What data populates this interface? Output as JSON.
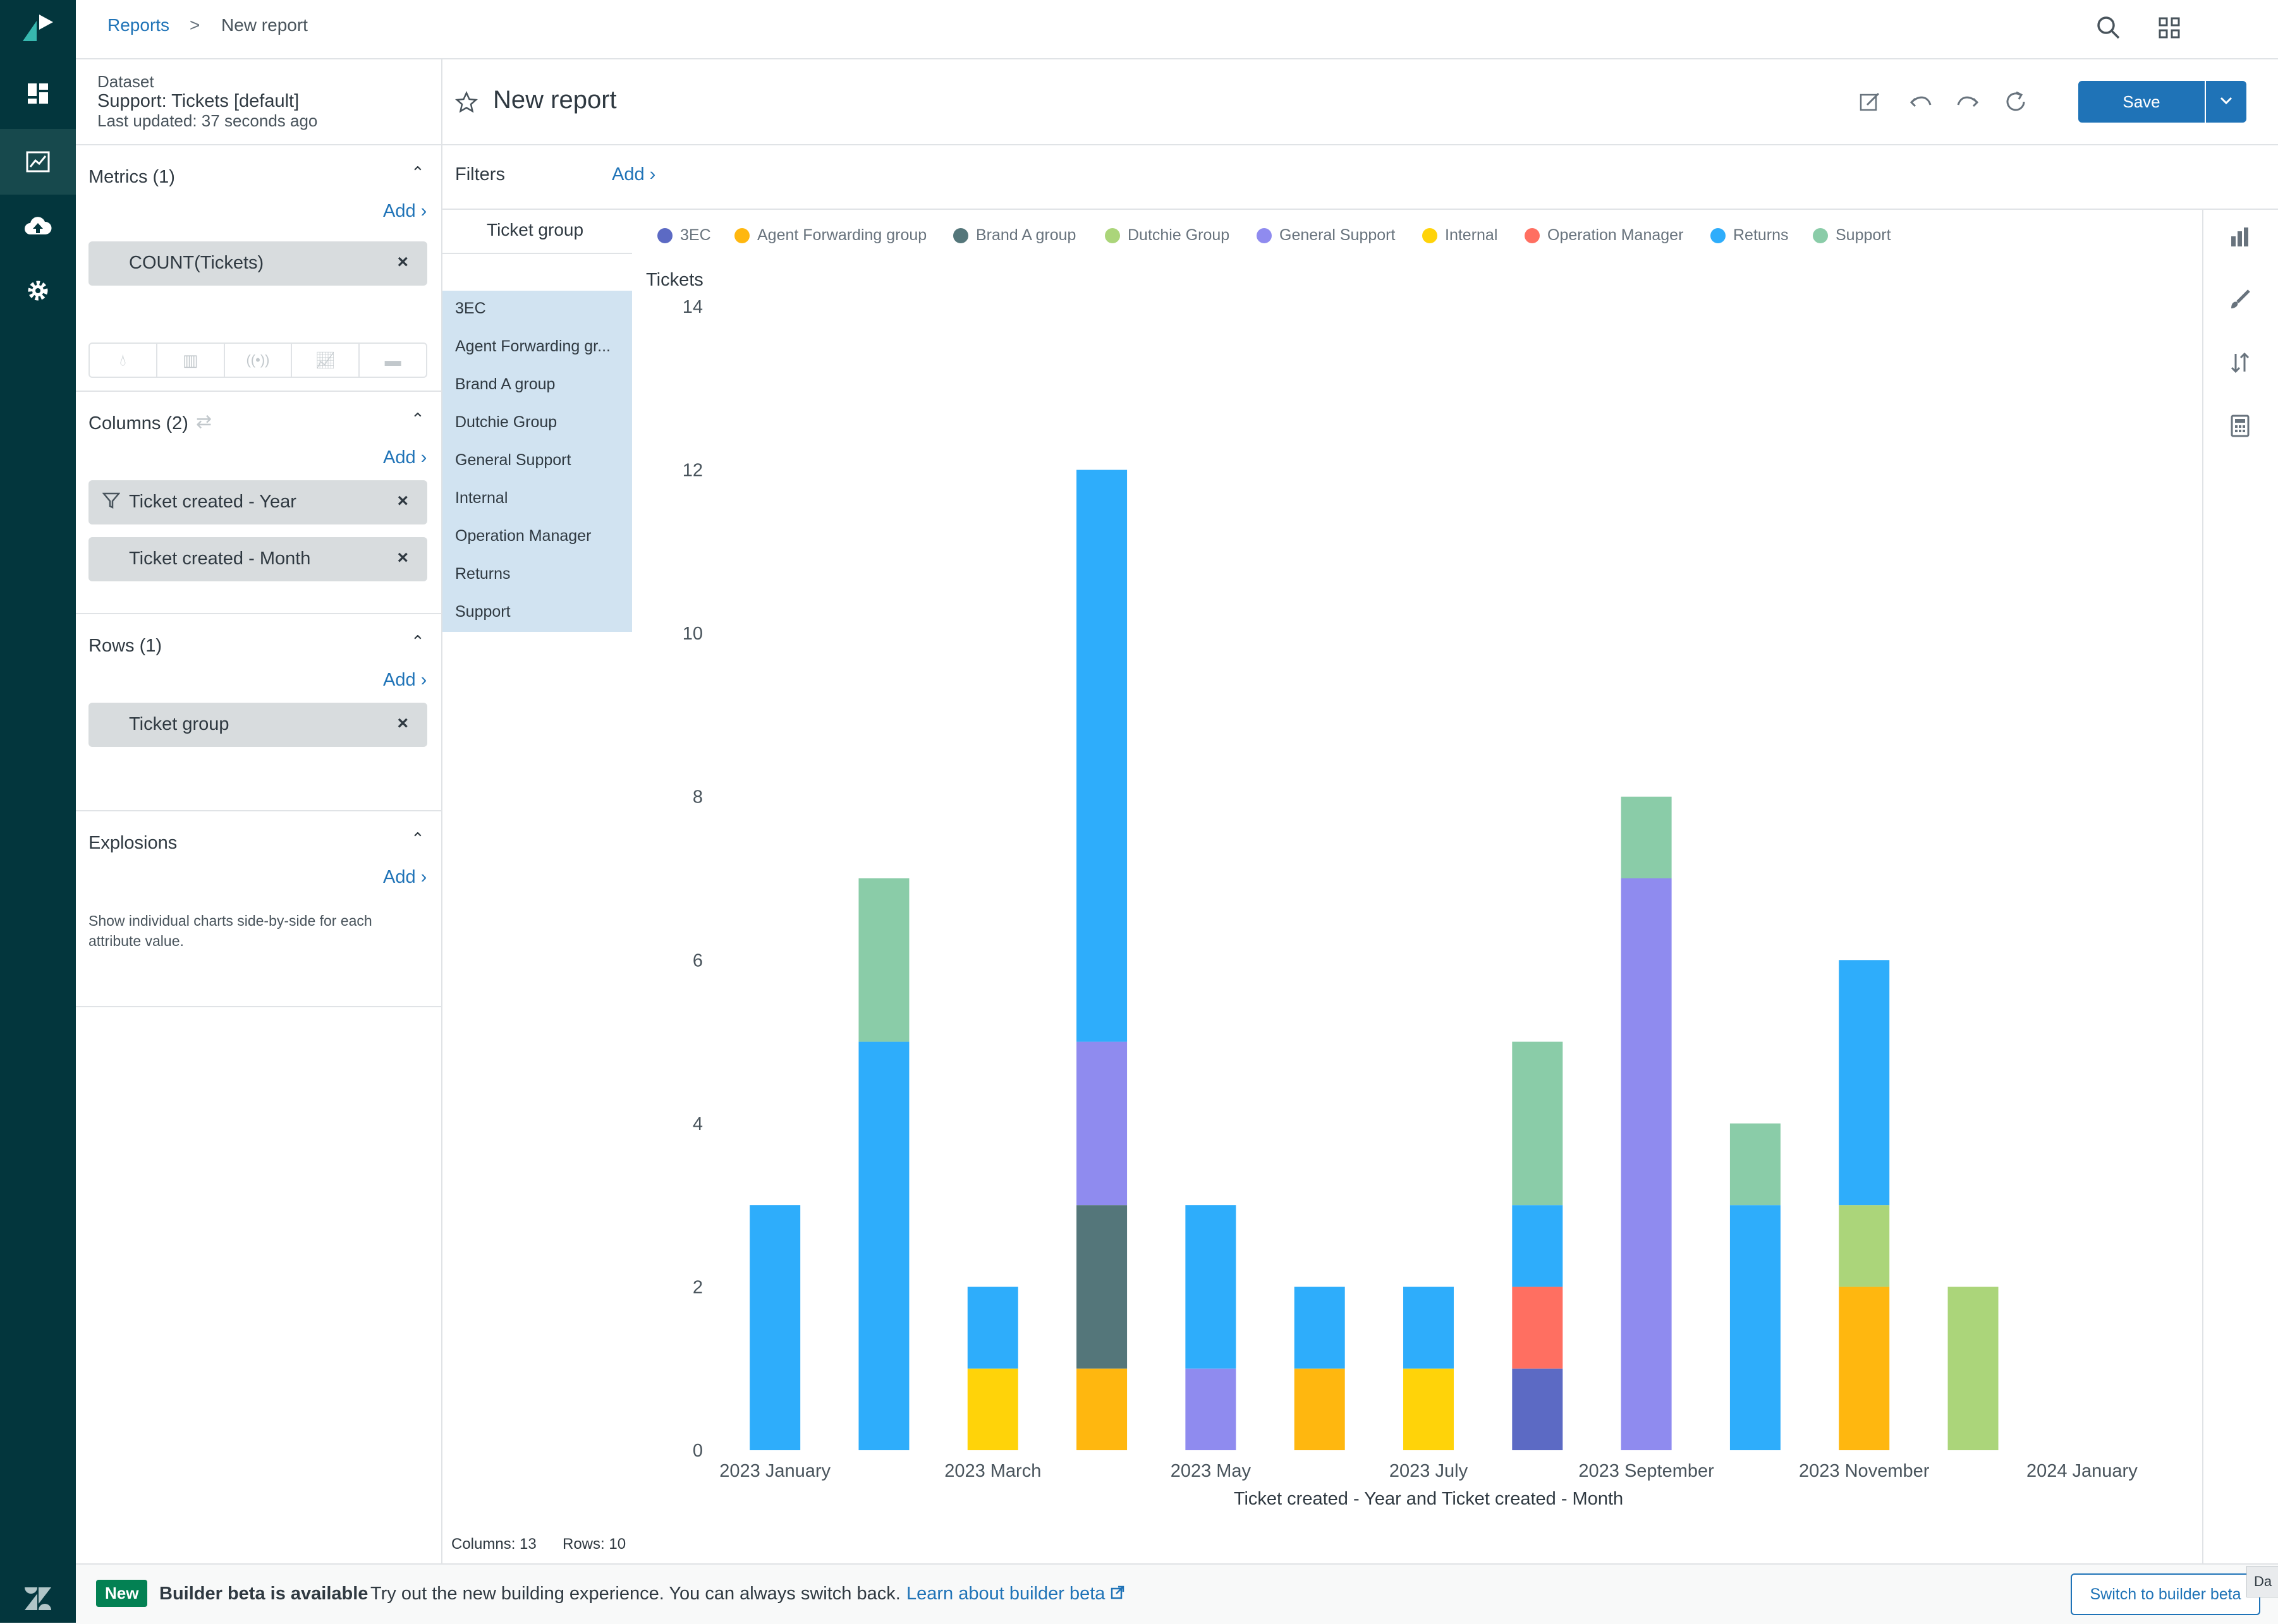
{
  "breadcrumb": {
    "reports": "Reports",
    "separator": ">",
    "current": "New report"
  },
  "dataset": {
    "label": "Dataset",
    "name": "Support: Tickets [default]",
    "updated": "Last updated: 37 seconds ago"
  },
  "report": {
    "title": "New report"
  },
  "toolbar": {
    "save_label": "Save"
  },
  "filters": {
    "label": "Filters",
    "add": "Add ›"
  },
  "metrics": {
    "title": "Metrics (1)",
    "add": "Add ›",
    "items": [
      "COUNT(Tickets)"
    ]
  },
  "columns": {
    "title": "Columns (2)",
    "add": "Add ›",
    "items": [
      "Ticket created - Year",
      "Ticket created - Month"
    ]
  },
  "rows": {
    "title": "Rows (1)",
    "add": "Add ›",
    "items": [
      "Ticket group"
    ]
  },
  "explosions": {
    "title": "Explosions",
    "add": "Add ›",
    "desc1": "Show individual charts side-by-side for each",
    "desc2": "attribute value."
  },
  "row_panel": {
    "header": "Ticket group",
    "items": [
      "3EC",
      "Agent Forwarding gr...",
      "Brand A group",
      "Dutchie Group",
      "General Support",
      "Internal",
      "Operation Manager",
      "Returns",
      "Support"
    ]
  },
  "footer_stats": {
    "columns": "Columns: 13",
    "rows": "Rows: 10"
  },
  "banner": {
    "badge": "New",
    "title": "Builder beta is available",
    "text": "Try out the new building experience. You can always switch back.",
    "link": "Learn about builder beta",
    "button": "Switch to builder beta",
    "tail": "Da"
  },
  "colors": {
    "accent": "#1f73b7",
    "nav_bg": "#03363d"
  },
  "icons": [
    "zendesk-logo-icon",
    "dashboard-icon",
    "reports-icon",
    "upload-icon",
    "settings-icon",
    "search-icon",
    "apps-grid-icon",
    "avatar",
    "star-icon",
    "edit-icon",
    "undo-icon",
    "redo-icon",
    "refresh-icon",
    "chevron-down-icon",
    "bar-chart-icon",
    "paint-brush-icon",
    "sort-icon",
    "calculator-icon",
    "filter-icon",
    "swap-icon"
  ],
  "chart_data": {
    "type": "bar",
    "stacked": true,
    "ylabel": "Tickets",
    "xlabel": "Ticket created - Year and Ticket created - Month",
    "ylim": [
      0,
      14
    ],
    "yticks": [
      0,
      2,
      4,
      6,
      8,
      10,
      12,
      14
    ],
    "categories": [
      "2023 January",
      "2023 February",
      "2023 March",
      "2023 April",
      "2023 May",
      "2023 June",
      "2023 July",
      "2023 August",
      "2023 September",
      "2023 October",
      "2023 November",
      "2023 December",
      "2024 January"
    ],
    "shown_tick_labels": [
      "2023 January",
      "2023 March",
      "2023 May",
      "2023 July",
      "2023 September",
      "2023 November",
      "2024 January"
    ],
    "legend": "top",
    "series": [
      {
        "name": "3EC",
        "color": "#5c6ac4",
        "values": [
          0,
          0,
          0,
          0,
          0,
          0,
          0,
          1,
          0,
          0,
          0,
          0,
          0
        ]
      },
      {
        "name": "Agent Forwarding group",
        "color": "#ffb70f",
        "values": [
          0,
          0,
          0,
          1,
          0,
          1,
          0,
          0,
          0,
          0,
          2,
          0,
          0
        ]
      },
      {
        "name": "Brand A group",
        "color": "#54767a",
        "values": [
          0,
          0,
          0,
          2,
          0,
          0,
          0,
          0,
          0,
          0,
          0,
          0,
          0
        ]
      },
      {
        "name": "Dutchie Group",
        "color": "#abd57a",
        "values": [
          0,
          0,
          0,
          0,
          0,
          0,
          0,
          0,
          0,
          0,
          1,
          2,
          0
        ]
      },
      {
        "name": "General Support",
        "color": "#8f8bef",
        "values": [
          0,
          0,
          0,
          2,
          1,
          0,
          0,
          0,
          7,
          0,
          0,
          0,
          0
        ]
      },
      {
        "name": "Internal",
        "color": "#ffd309",
        "values": [
          0,
          0,
          1,
          0,
          0,
          0,
          1,
          0,
          0,
          0,
          0,
          0,
          0
        ]
      },
      {
        "name": "Operation Manager",
        "color": "#ff6f61",
        "values": [
          0,
          0,
          0,
          0,
          0,
          0,
          0,
          1,
          0,
          0,
          0,
          0,
          0
        ]
      },
      {
        "name": "Returns",
        "color": "#2eadfb",
        "values": [
          3,
          5,
          1,
          7,
          2,
          1,
          1,
          1,
          0,
          3,
          3,
          0,
          0
        ]
      },
      {
        "name": "Support",
        "color": "#8acca8",
        "values": [
          0,
          2,
          0,
          0,
          0,
          0,
          0,
          2,
          1,
          1,
          0,
          0,
          0
        ]
      }
    ]
  }
}
